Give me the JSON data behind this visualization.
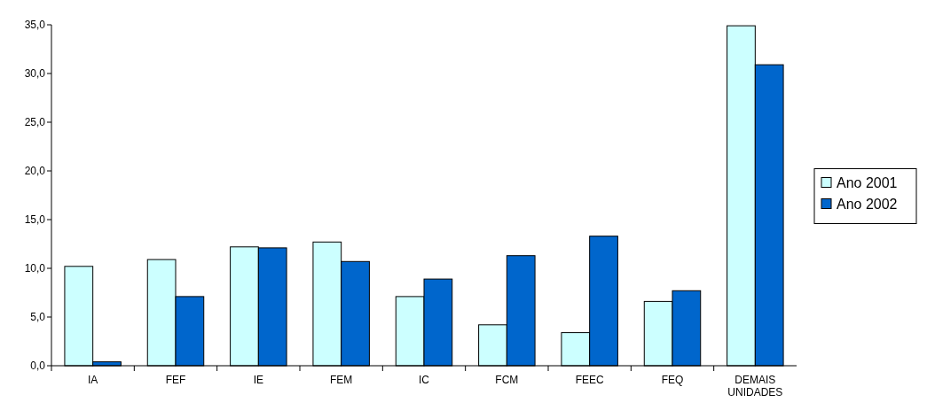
{
  "chart_data": {
    "type": "bar",
    "categories": [
      "IA",
      "FEF",
      "IE",
      "FEM",
      "IC",
      "FCM",
      "FEEC",
      "FEQ",
      "DEMAIS UNIDADES"
    ],
    "series": [
      {
        "name": "Ano 2001",
        "color": "#ccffff",
        "values": [
          10.2,
          10.9,
          12.2,
          12.7,
          7.1,
          4.2,
          3.4,
          6.6,
          34.9
        ]
      },
      {
        "name": "Ano 2002",
        "color": "#0066cc",
        "values": [
          0.4,
          7.1,
          12.1,
          10.7,
          8.9,
          11.3,
          13.3,
          7.7,
          30.9
        ]
      }
    ],
    "ylim": [
      0,
      35
    ],
    "yticks": [
      {
        "value": 0,
        "label": "0,0"
      },
      {
        "value": 5,
        "label": "5,0"
      },
      {
        "value": 10,
        "label": "10,0"
      },
      {
        "value": 15,
        "label": "15,0"
      },
      {
        "value": 20,
        "label": "20,0"
      },
      {
        "value": 25,
        "label": "25,0"
      },
      {
        "value": 30,
        "label": "30,0"
      },
      {
        "value": 35,
        "label": "35,0"
      }
    ],
    "legend": "right"
  }
}
